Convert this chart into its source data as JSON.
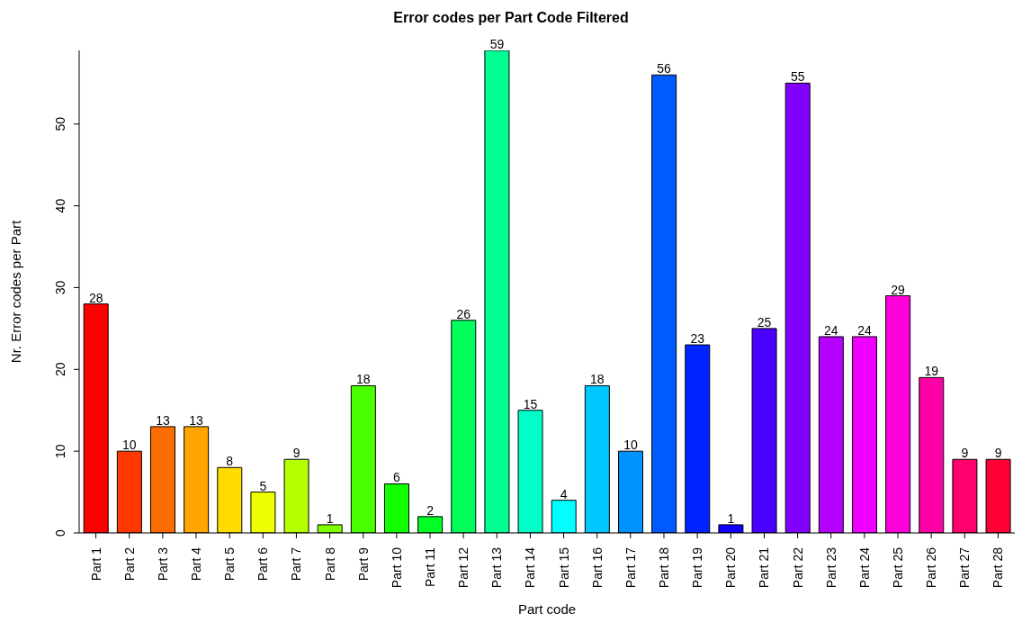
{
  "chart_data": {
    "type": "bar",
    "title": "Error codes per Part Code Filtered",
    "xlabel": "Part code",
    "ylabel": "Nr. Error codes per Part",
    "categories": [
      "Part 1",
      "Part 2",
      "Part 3",
      "Part 4",
      "Part 5",
      "Part 6",
      "Part 7",
      "Part 8",
      "Part 9",
      "Part 10",
      "Part 11",
      "Part 12",
      "Part 13",
      "Part 14",
      "Part 15",
      "Part 16",
      "Part 17",
      "Part 18",
      "Part 19",
      "Part 20",
      "Part 21",
      "Part 22",
      "Part 23",
      "Part 24",
      "Part 25",
      "Part 26",
      "Part 27",
      "Part 28"
    ],
    "values": [
      28,
      10,
      13,
      13,
      8,
      5,
      9,
      1,
      18,
      6,
      2,
      26,
      59,
      15,
      4,
      18,
      10,
      56,
      23,
      1,
      25,
      55,
      24,
      24,
      29,
      19,
      9,
      9
    ],
    "colors": [
      "#ff0000",
      "#ff3700",
      "#ff6d00",
      "#ffa400",
      "#ffdb00",
      "#edff00",
      "#b6ff00",
      "#80ff00",
      "#49ff00",
      "#12ff00",
      "#00ff24",
      "#00ff5b",
      "#00ff92",
      "#00ffc8",
      "#00ffff",
      "#00c8ff",
      "#0092ff",
      "#005bff",
      "#0024ff",
      "#1200ff",
      "#4900ff",
      "#8000ff",
      "#b600ff",
      "#ed00ff",
      "#ff00db",
      "#ff00a4",
      "#ff006d",
      "#ff0037"
    ],
    "ylim": [
      0,
      59
    ],
    "yticks": [
      0,
      10,
      20,
      30,
      40,
      50
    ],
    "grid": false,
    "data_labels": true
  }
}
